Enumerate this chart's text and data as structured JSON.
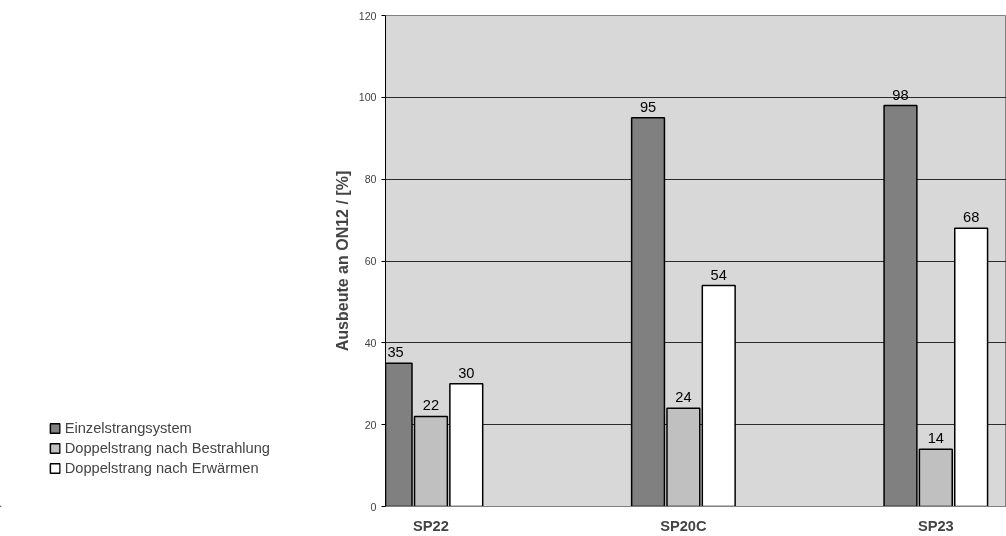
{
  "chart_data": {
    "type": "bar",
    "ylabel": "Ausbeute an ON12 / [%]",
    "categories": [
      "SP22",
      "SP20C",
      "SP23"
    ],
    "series": [
      {
        "name": "Einzelstrangsystem",
        "color": "#808080",
        "values": [
          35,
          95,
          98
        ]
      },
      {
        "name": "Doppelstrang nach Bestrahlung",
        "color": "#c0c0c0",
        "values": [
          22,
          24,
          14
        ]
      },
      {
        "name": "Doppelstrang nach Erwärmen",
        "color": "#ffffff",
        "values": [
          30,
          54,
          68
        ]
      }
    ],
    "ylim": [
      0,
      120
    ],
    "yticks": [
      0,
      20,
      40,
      60,
      80,
      100,
      120
    ],
    "grid": "y",
    "legend": "left",
    "data_labels": true
  }
}
